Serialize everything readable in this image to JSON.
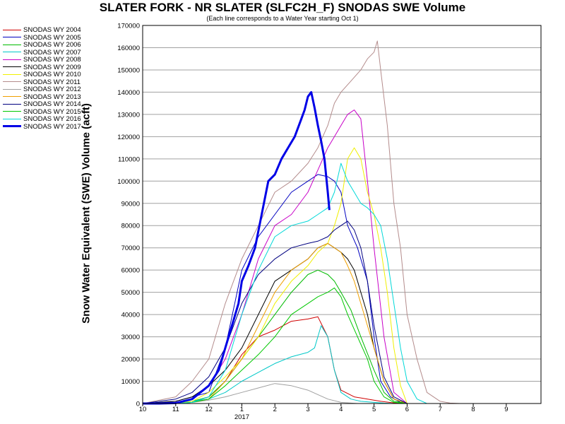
{
  "chart_data": {
    "type": "line",
    "title": "SLATER FORK - NR SLATER (SLFC2H_F) SNODAS SWE Volume",
    "subtitle": "(Each line corresponds to a Water Year starting Oct 1)",
    "ylabel": "Snow Water Equivalent (SWE) Volume (acft)",
    "xlabel": "",
    "ylim": [
      0,
      170000
    ],
    "y_ticks": [
      0,
      10000,
      20000,
      30000,
      40000,
      50000,
      60000,
      70000,
      80000,
      90000,
      100000,
      110000,
      120000,
      130000,
      140000,
      150000,
      160000,
      170000
    ],
    "xlim": [
      10,
      10.95
    ],
    "x_ticks": [
      {
        "x": 10,
        "label": "10"
      },
      {
        "x": 11,
        "label": "11"
      },
      {
        "x": 12,
        "label": "12"
      },
      {
        "x": 13,
        "label": "1"
      },
      {
        "x": 14,
        "label": "2"
      },
      {
        "x": 15,
        "label": "3"
      },
      {
        "x": 16,
        "label": "4"
      },
      {
        "x": 17,
        "label": "5"
      },
      {
        "x": 18,
        "label": "6"
      },
      {
        "x": 19,
        "label": "7"
      },
      {
        "x": 20,
        "label": "8"
      },
      {
        "x": 21,
        "label": "9"
      }
    ],
    "year_label": "2017",
    "grid": true,
    "legend_position": "left",
    "series": [
      {
        "name": "SNODAS WY 2004",
        "color": "#d00000",
        "width": 1,
        "x": [
          10.0,
          11.0,
          11.5,
          12.0,
          12.5,
          13.0,
          13.5,
          14.0,
          14.5,
          15.0,
          15.3,
          15.6,
          15.8,
          16.0,
          16.4,
          16.8,
          17.2,
          17.6,
          18.0
        ],
        "y": [
          0,
          0,
          500,
          3000,
          10000,
          22000,
          30000,
          33000,
          37000,
          38000,
          39000,
          30000,
          15000,
          6000,
          3000,
          2000,
          1000,
          300,
          0
        ]
      },
      {
        "name": "SNODAS WY 2005",
        "color": "#0000c0",
        "width": 1,
        "x": [
          10.0,
          11.0,
          11.5,
          12.0,
          12.5,
          13.0,
          13.5,
          14.0,
          14.5,
          15.0,
          15.3,
          15.6,
          15.8,
          16.0,
          16.2,
          16.5,
          16.8,
          17.0,
          17.2,
          17.5,
          17.8,
          18.0
        ],
        "y": [
          0,
          1000,
          3000,
          5000,
          25000,
          60000,
          75000,
          85000,
          95000,
          100000,
          103000,
          102000,
          100000,
          95000,
          80000,
          70000,
          55000,
          30000,
          10000,
          3000,
          500,
          0
        ]
      },
      {
        "name": "SNODAS WY 2006",
        "color": "#00bb00",
        "width": 1,
        "x": [
          10.0,
          11.0,
          11.5,
          12.0,
          12.5,
          13.0,
          13.5,
          14.0,
          14.5,
          15.0,
          15.3,
          15.6,
          15.8,
          16.0,
          16.3,
          16.6,
          17.0,
          17.3,
          17.6,
          18.0
        ],
        "y": [
          0,
          0,
          1000,
          3000,
          10000,
          20000,
          30000,
          40000,
          50000,
          58000,
          60000,
          58000,
          55000,
          50000,
          42000,
          30000,
          15000,
          5000,
          1000,
          0
        ]
      },
      {
        "name": "SNODAS WY 2007",
        "color": "#00c8c8",
        "width": 1,
        "x": [
          10.0,
          11.0,
          11.5,
          12.0,
          12.5,
          13.0,
          13.5,
          14.0,
          14.5,
          15.0,
          15.2,
          15.4,
          15.6,
          15.8,
          16.0,
          16.3,
          16.6,
          17.0,
          17.3,
          17.6,
          18.0
        ],
        "y": [
          0,
          500,
          1000,
          2000,
          5000,
          10000,
          14000,
          18000,
          21000,
          23000,
          25000,
          35000,
          30000,
          15000,
          5000,
          2000,
          1000,
          500,
          200,
          0,
          0
        ]
      },
      {
        "name": "SNODAS WY 2008",
        "color": "#c800c8",
        "width": 1,
        "x": [
          10.0,
          11.0,
          11.5,
          12.0,
          12.5,
          13.0,
          13.5,
          14.0,
          14.5,
          15.0,
          15.3,
          15.6,
          15.8,
          16.0,
          16.2,
          16.4,
          16.6,
          16.8,
          17.0,
          17.3,
          17.6,
          18.0
        ],
        "y": [
          0,
          500,
          2000,
          8000,
          20000,
          40000,
          65000,
          80000,
          85000,
          95000,
          105000,
          115000,
          120000,
          125000,
          130000,
          132000,
          128000,
          100000,
          70000,
          30000,
          5000,
          0
        ]
      },
      {
        "name": "SNODAS WY 2009",
        "color": "#000000",
        "width": 1,
        "x": [
          10.0,
          11.0,
          11.5,
          12.0,
          12.5,
          13.0,
          13.5,
          14.0,
          14.5,
          15.0,
          15.3,
          15.6,
          15.8,
          16.0,
          16.2,
          16.4,
          16.6,
          16.8,
          17.0,
          17.3,
          17.6,
          18.0
        ],
        "y": [
          0,
          1000,
          3000,
          8000,
          15000,
          25000,
          40000,
          55000,
          60000,
          65000,
          70000,
          72000,
          70000,
          68000,
          65000,
          60000,
          50000,
          40000,
          25000,
          10000,
          2000,
          0
        ]
      },
      {
        "name": "SNODAS WY 2010",
        "color": "#f0f000",
        "width": 1,
        "x": [
          10.0,
          11.0,
          11.5,
          12.0,
          12.5,
          13.0,
          13.5,
          14.0,
          14.5,
          15.0,
          15.3,
          15.6,
          15.8,
          16.0,
          16.2,
          16.4,
          16.6,
          16.8,
          17.0,
          17.2,
          17.4,
          17.6,
          17.8,
          18.0
        ],
        "y": [
          0,
          0,
          1000,
          5000,
          12000,
          20000,
          30000,
          45000,
          55000,
          62000,
          68000,
          72000,
          80000,
          90000,
          110000,
          115000,
          110000,
          95000,
          85000,
          70000,
          50000,
          25000,
          8000,
          0
        ]
      },
      {
        "name": "SNODAS WY 2011",
        "color": "#b48c8c",
        "width": 1,
        "x": [
          10.0,
          11.0,
          11.5,
          12.0,
          12.5,
          13.0,
          13.5,
          14.0,
          14.5,
          15.0,
          15.3,
          15.6,
          15.8,
          16.0,
          16.3,
          16.6,
          16.8,
          17.0,
          17.1,
          17.2,
          17.4,
          17.6,
          17.8,
          18.0,
          18.3,
          18.6,
          19.0,
          19.3,
          19.6
        ],
        "y": [
          0,
          3000,
          10000,
          20000,
          45000,
          65000,
          80000,
          95000,
          100000,
          108000,
          115000,
          125000,
          135000,
          140000,
          145000,
          150000,
          155000,
          158000,
          163000,
          150000,
          125000,
          90000,
          70000,
          40000,
          20000,
          5000,
          1000,
          200,
          0
        ]
      },
      {
        "name": "SNODAS WY 2012",
        "color": "#a0a0a0",
        "width": 1,
        "x": [
          10.0,
          11.0,
          11.5,
          12.0,
          12.5,
          13.0,
          13.5,
          14.0,
          14.5,
          15.0,
          15.3,
          15.6,
          16.0,
          16.5,
          17.0,
          17.5
        ],
        "y": [
          0,
          0,
          500,
          1500,
          3000,
          5000,
          7000,
          9000,
          8000,
          6000,
          4000,
          2000,
          500,
          0,
          0,
          0
        ]
      },
      {
        "name": "SNODAS WY 2013",
        "color": "#f0a000",
        "width": 1,
        "x": [
          10.0,
          11.0,
          11.5,
          12.0,
          12.5,
          13.0,
          13.5,
          14.0,
          14.5,
          15.0,
          15.3,
          15.6,
          15.8,
          16.0,
          16.2,
          16.4,
          16.6,
          16.8,
          17.0,
          17.3,
          17.6,
          18.0
        ],
        "y": [
          0,
          0,
          500,
          2000,
          10000,
          20000,
          35000,
          50000,
          60000,
          65000,
          70000,
          72000,
          70000,
          68000,
          62000,
          55000,
          45000,
          35000,
          25000,
          10000,
          2000,
          0
        ]
      },
      {
        "name": "SNODAS WY 2014",
        "color": "#000080",
        "width": 1,
        "x": [
          10.0,
          11.0,
          11.5,
          12.0,
          12.5,
          13.0,
          13.5,
          14.0,
          14.5,
          15.0,
          15.3,
          15.6,
          15.8,
          16.0,
          16.2,
          16.4,
          16.6,
          16.8,
          17.0,
          17.3,
          17.6,
          18.0
        ],
        "y": [
          0,
          2000,
          5000,
          12000,
          25000,
          45000,
          58000,
          65000,
          70000,
          72000,
          73000,
          75000,
          78000,
          80000,
          82000,
          78000,
          70000,
          55000,
          35000,
          12000,
          3000,
          0
        ]
      },
      {
        "name": "SNODAS WY 2015",
        "color": "#00c800",
        "width": 1,
        "x": [
          10.0,
          11.0,
          11.5,
          12.0,
          12.5,
          13.0,
          13.5,
          14.0,
          14.5,
          15.0,
          15.3,
          15.6,
          15.8,
          16.0,
          16.2,
          16.5,
          16.8,
          17.0,
          17.3,
          17.6,
          18.0
        ],
        "y": [
          0,
          0,
          500,
          2000,
          8000,
          15000,
          22000,
          30000,
          40000,
          45000,
          48000,
          50000,
          52000,
          48000,
          40000,
          30000,
          20000,
          10000,
          3000,
          500,
          0
        ]
      },
      {
        "name": "SNODAS WY 2016",
        "color": "#00d8d8",
        "width": 1,
        "x": [
          10.0,
          11.0,
          11.5,
          12.0,
          12.5,
          13.0,
          13.5,
          14.0,
          14.5,
          15.0,
          15.3,
          15.6,
          15.8,
          16.0,
          16.2,
          16.4,
          16.6,
          16.8,
          17.0,
          17.2,
          17.4,
          17.6,
          17.8,
          18.0,
          18.3,
          18.6
        ],
        "y": [
          0,
          0,
          500,
          3000,
          15000,
          40000,
          60000,
          75000,
          80000,
          82000,
          85000,
          88000,
          95000,
          108000,
          100000,
          95000,
          90000,
          88000,
          85000,
          80000,
          65000,
          45000,
          25000,
          10000,
          2000,
          0
        ]
      },
      {
        "name": "SNODAS WY 2017",
        "color": "#0000e6",
        "width": 3,
        "x": [
          10.0,
          10.5,
          11.0,
          11.5,
          12.0,
          12.3,
          12.5,
          12.7,
          12.9,
          13.0,
          13.2,
          13.4,
          13.6,
          13.8,
          14.0,
          14.2,
          14.4,
          14.6,
          14.8,
          14.9,
          15.0,
          15.1,
          15.2,
          15.3,
          15.4,
          15.5,
          15.6,
          15.65
        ],
        "y": [
          0,
          0,
          200,
          2000,
          8000,
          15000,
          25000,
          35000,
          45000,
          55000,
          62000,
          70000,
          85000,
          100000,
          103000,
          110000,
          115000,
          120000,
          128000,
          132000,
          138000,
          140000,
          133000,
          125000,
          118000,
          110000,
          95000,
          87000
        ]
      }
    ]
  }
}
